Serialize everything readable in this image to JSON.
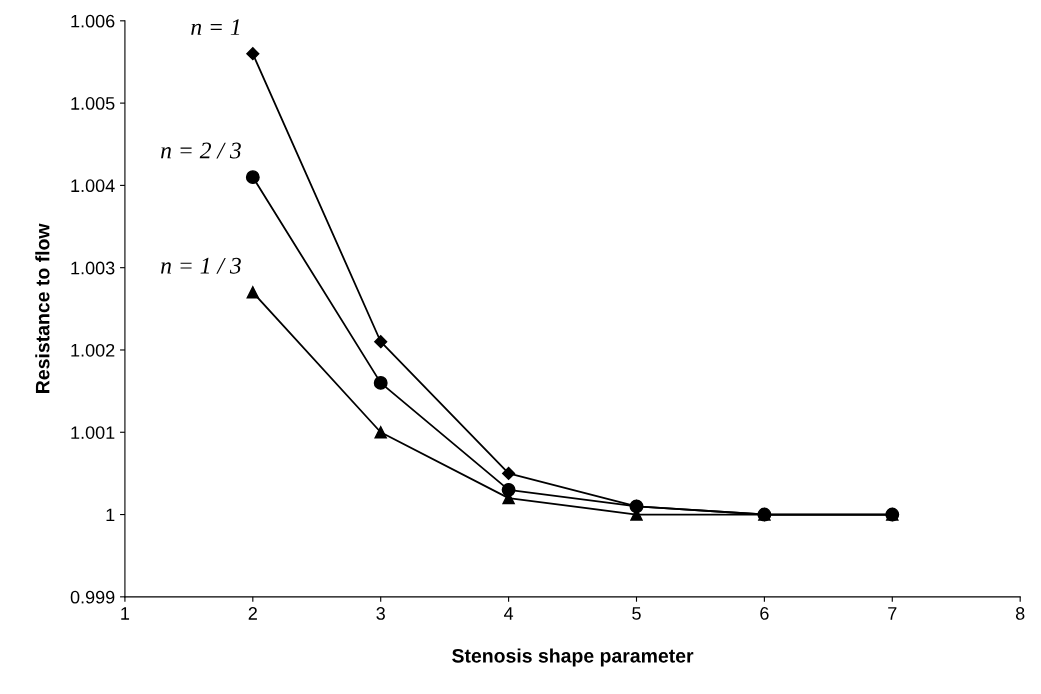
{
  "chart_data": {
    "type": "line",
    "xlabel": "Stenosis shape parameter",
    "ylabel": "Resistance to flow",
    "x": [
      2,
      3,
      4,
      5,
      6,
      7
    ],
    "series": [
      {
        "name": "n = 1",
        "color": "#000000",
        "marker": "diamond",
        "values": [
          1.0056,
          1.0021,
          1.0005,
          1.0001,
          1.0,
          1.0
        ]
      },
      {
        "name": "n = 2 / 3",
        "color": "#000000",
        "marker": "circle",
        "values": [
          1.0041,
          1.0016,
          1.0003,
          1.0001,
          1.0,
          1.0
        ]
      },
      {
        "name": "n = 1 / 3",
        "color": "#000000",
        "marker": "triangle",
        "values": [
          1.0027,
          1.001,
          1.0002,
          1.0,
          1.0,
          1.0
        ]
      }
    ],
    "xlim": [
      1,
      8
    ],
    "xticks": [
      1,
      2,
      3,
      4,
      5,
      6,
      7,
      8
    ],
    "ylim": [
      0.999,
      1.006
    ],
    "yticks": [
      0.999,
      1,
      1.001,
      1.002,
      1.003,
      1.004,
      1.005,
      1.006
    ],
    "grid": false,
    "legend": false,
    "line_style": "solid"
  }
}
